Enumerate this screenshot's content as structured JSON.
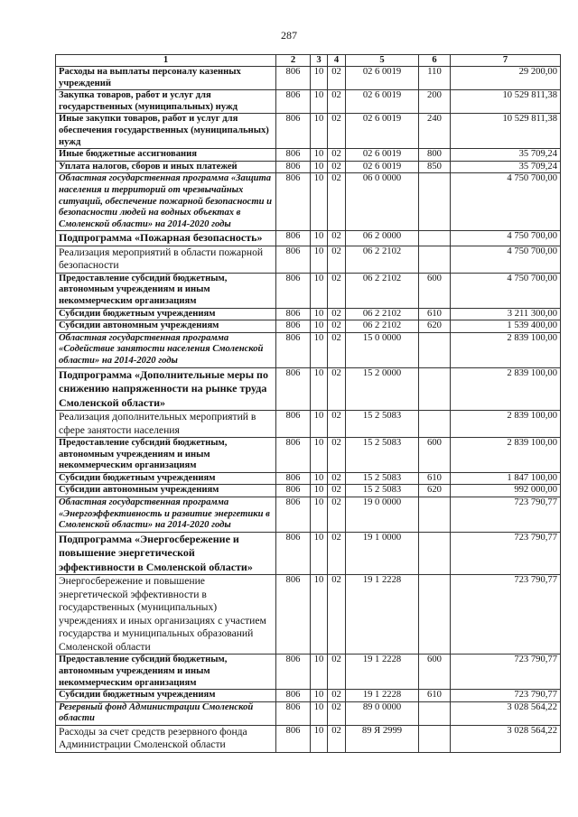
{
  "page_number": "287",
  "headers": [
    "1",
    "2",
    "3",
    "4",
    "5",
    "6",
    "7"
  ],
  "rows": [
    {
      "style": "b",
      "name": "Расходы на выплаты персоналу казенных учреждений",
      "c2": "806",
      "c3": "10",
      "c4": "02",
      "c5": "02 6 0019",
      "c6": "110",
      "c7": "29 200,00"
    },
    {
      "style": "b",
      "name": "Закупка товаров, работ и услуг для государственных (муниципальных) нужд",
      "c2": "806",
      "c3": "10",
      "c4": "02",
      "c5": "02 6 0019",
      "c6": "200",
      "c7": "10 529 811,38"
    },
    {
      "style": "b",
      "name": "Иные закупки товаров, работ и услуг для обеспечения государственных (муниципальных) нужд",
      "c2": "806",
      "c3": "10",
      "c4": "02",
      "c5": "02 6 0019",
      "c6": "240",
      "c7": "10 529 811,38"
    },
    {
      "style": "b",
      "name": "Иные бюджетные ассигнования",
      "c2": "806",
      "c3": "10",
      "c4": "02",
      "c5": "02 6 0019",
      "c6": "800",
      "c7": "35 709,24"
    },
    {
      "style": "b",
      "name": "Уплата налогов, сборов и иных платежей",
      "c2": "806",
      "c3": "10",
      "c4": "02",
      "c5": "02 6 0019",
      "c6": "850",
      "c7": "35 709,24"
    },
    {
      "style": "bi",
      "name": "Областная государственная программа «Защита населения и территорий от чрезвычайных ситуаций, обеспечение пожарной безопасности и безопасности людей на водных объектах в Смоленской области» на 2014-2020 годы",
      "c2": "806",
      "c3": "10",
      "c4": "02",
      "c5": "06 0 0000",
      "c6": "",
      "c7": "4 750 700,00"
    },
    {
      "style": "h",
      "name": "Подпрограмма «Пожарная безопасность»",
      "c2": "806",
      "c3": "10",
      "c4": "02",
      "c5": "06 2 0000",
      "c6": "",
      "c7": "4 750 700,00"
    },
    {
      "style": "n",
      "name": "Реализация мероприятий в области пожарной безопасности",
      "c2": "806",
      "c3": "10",
      "c4": "02",
      "c5": "06 2 2102",
      "c6": "",
      "c7": "4 750 700,00"
    },
    {
      "style": "b",
      "name": "Предоставление субсидий бюджетным, автономным учреждениям и иным некоммерческим организациям",
      "c2": "806",
      "c3": "10",
      "c4": "02",
      "c5": "06 2 2102",
      "c6": "600",
      "c7": "4 750 700,00"
    },
    {
      "style": "b",
      "name": "Субсидии бюджетным учреждениям",
      "c2": "806",
      "c3": "10",
      "c4": "02",
      "c5": "06 2 2102",
      "c6": "610",
      "c7": "3 211 300,00"
    },
    {
      "style": "b",
      "name": "Субсидии автономным учреждениям",
      "c2": "806",
      "c3": "10",
      "c4": "02",
      "c5": "06 2 2102",
      "c6": "620",
      "c7": "1 539 400,00"
    },
    {
      "style": "bi",
      "name": "Областная государственная программа «Содействие занятости населения Смоленской области» на 2014-2020 годы",
      "c2": "806",
      "c3": "10",
      "c4": "02",
      "c5": "15 0 0000",
      "c6": "",
      "c7": "2 839 100,00"
    },
    {
      "style": "h",
      "name": "Подпрограмма «Дополнительные меры по снижению напряженности на рынке труда Смоленской области»",
      "c2": "806",
      "c3": "10",
      "c4": "02",
      "c5": "15 2 0000",
      "c6": "",
      "c7": "2 839 100,00"
    },
    {
      "style": "n",
      "name": "Реализация дополнительных мероприятий в сфере занятости населения",
      "c2": "806",
      "c3": "10",
      "c4": "02",
      "c5": "15 2 5083",
      "c6": "",
      "c7": "2 839 100,00"
    },
    {
      "style": "b",
      "name": "Предоставление субсидий бюджетным, автономным учреждениям и иным некоммерческим организациям",
      "c2": "806",
      "c3": "10",
      "c4": "02",
      "c5": "15 2 5083",
      "c6": "600",
      "c7": "2 839 100,00"
    },
    {
      "style": "b",
      "name": "Субсидии бюджетным учреждениям",
      "c2": "806",
      "c3": "10",
      "c4": "02",
      "c5": "15 2 5083",
      "c6": "610",
      "c7": "1 847 100,00"
    },
    {
      "style": "b",
      "name": "Субсидии автономным учреждениям",
      "c2": "806",
      "c3": "10",
      "c4": "02",
      "c5": "15 2 5083",
      "c6": "620",
      "c7": "992 000,00"
    },
    {
      "style": "bi",
      "name": "Областная государственная программа «Энергоэффективность и развитие энергетики в Смоленской области» на 2014-2020 годы",
      "c2": "806",
      "c3": "10",
      "c4": "02",
      "c5": "19 0 0000",
      "c6": "",
      "c7": "723 790,77"
    },
    {
      "style": "h",
      "name": "Подпрограмма «Энергосбережение и повышение энергетической эффективности в Смоленской области»",
      "c2": "806",
      "c3": "10",
      "c4": "02",
      "c5": "19 1 0000",
      "c6": "",
      "c7": "723 790,77"
    },
    {
      "style": "n",
      "name": "Энергосбережение и повышение энергетической эффективности в государственных (муниципальных) учреждениях и иных организациях с участием государства и муниципальных образований Смоленской области",
      "c2": "806",
      "c3": "10",
      "c4": "02",
      "c5": "19 1 2228",
      "c6": "",
      "c7": "723 790,77"
    },
    {
      "style": "b",
      "name": "Предоставление субсидий бюджетным, автономным учреждениям и иным некоммерческим организациям",
      "c2": "806",
      "c3": "10",
      "c4": "02",
      "c5": "19 1 2228",
      "c6": "600",
      "c7": "723 790,77"
    },
    {
      "style": "b",
      "name": "Субсидии бюджетным учреждениям",
      "c2": "806",
      "c3": "10",
      "c4": "02",
      "c5": "19 1 2228",
      "c6": "610",
      "c7": "723 790,77"
    },
    {
      "style": "bi",
      "name": "Резервный фонд Администрации Смоленской области",
      "c2": "806",
      "c3": "10",
      "c4": "02",
      "c5": "89 0 0000",
      "c6": "",
      "c7": "3 028 564,22"
    },
    {
      "style": "n",
      "name": "Расходы за счет средств резервного фонда Администрации Смоленской области",
      "c2": "806",
      "c3": "10",
      "c4": "02",
      "c5": "89 Я 2999",
      "c6": "",
      "c7": "3 028 564,22"
    }
  ]
}
